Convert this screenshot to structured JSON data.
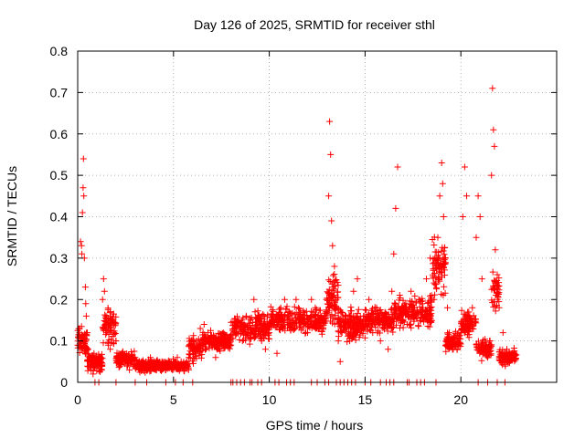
{
  "chart_data": {
    "type": "scatter",
    "title": "Day 126 of 2025, SRMTID for receiver sthl",
    "xlabel": "GPS time / hours",
    "ylabel": "SRMTID / TECUs",
    "xlim": [
      0,
      25
    ],
    "ylim": [
      0,
      0.8
    ],
    "x_ticks": [
      0,
      5,
      10,
      15,
      20
    ],
    "x_tick_labels": [
      "0",
      "5",
      "10",
      "15",
      "20"
    ],
    "y_ticks": [
      0,
      0.1,
      0.2,
      0.3,
      0.4,
      0.5,
      0.6,
      0.7,
      0.8
    ],
    "y_tick_labels": [
      "0",
      "0.1",
      "0.2",
      "0.3",
      "0.4",
      "0.5",
      "0.6",
      "0.7",
      "0.8"
    ],
    "grid": true,
    "legend": "none",
    "marker": "+",
    "marker_color": "#ff0000",
    "series": [
      {
        "name": "SRMTID",
        "points": [
          [
            0.0,
            0.09
          ],
          [
            0.05,
            0.11
          ],
          [
            0.1,
            0.13
          ],
          [
            0.15,
            0.34
          ],
          [
            0.2,
            0.33
          ],
          [
            0.22,
            0.31
          ],
          [
            0.25,
            0.41
          ],
          [
            0.28,
            0.47
          ],
          [
            0.3,
            0.54
          ],
          [
            0.32,
            0.45
          ],
          [
            0.35,
            0.3
          ],
          [
            0.4,
            0.23
          ],
          [
            0.42,
            0.19
          ],
          [
            0.45,
            0.16
          ],
          [
            0.5,
            0.12
          ],
          [
            0.55,
            0.08
          ],
          [
            0.6,
            0.06
          ],
          [
            0.65,
            0.04
          ],
          [
            0.7,
            0.03
          ],
          [
            0.75,
            0.05
          ],
          [
            0.8,
            0.02
          ],
          [
            0.85,
            0.07
          ],
          [
            0.9,
            0.06
          ],
          [
            1.0,
            0.05
          ],
          [
            1.1,
            0.04
          ],
          [
            1.2,
            0.06
          ],
          [
            1.3,
            0.2
          ],
          [
            1.35,
            0.25
          ],
          [
            1.4,
            0.22
          ],
          [
            1.45,
            0.14
          ],
          [
            1.5,
            0.12
          ],
          [
            1.6,
            0.09
          ],
          [
            1.7,
            0.08
          ],
          [
            1.8,
            0.15
          ],
          [
            1.9,
            0.12
          ],
          [
            2.0,
            0.1
          ],
          [
            2.1,
            0.06
          ],
          [
            2.2,
            0.05
          ],
          [
            2.3,
            0.07
          ],
          [
            2.4,
            0.06
          ],
          [
            2.5,
            0.05
          ],
          [
            2.6,
            0.04
          ],
          [
            2.7,
            0.03
          ],
          [
            2.8,
            0.05
          ],
          [
            2.9,
            0.04
          ],
          [
            3.0,
            0.06
          ],
          [
            3.2,
            0.03
          ],
          [
            3.4,
            0.05
          ],
          [
            3.6,
            0.04
          ],
          [
            3.8,
            0.06
          ],
          [
            4.0,
            0.05
          ],
          [
            4.2,
            0.04
          ],
          [
            4.4,
            0.05
          ],
          [
            4.6,
            0.03
          ],
          [
            4.8,
            0.05
          ],
          [
            5.0,
            0.04
          ],
          [
            5.2,
            0.06
          ],
          [
            5.4,
            0.05
          ],
          [
            5.6,
            0.04
          ],
          [
            5.8,
            0.06
          ],
          [
            6.0,
            0.08
          ],
          [
            6.2,
            0.1
          ],
          [
            6.4,
            0.13
          ],
          [
            6.6,
            0.14
          ],
          [
            6.8,
            0.12
          ],
          [
            7.0,
            0.1
          ],
          [
            7.2,
            0.06
          ],
          [
            7.4,
            0.08
          ],
          [
            7.6,
            0.12
          ],
          [
            7.8,
            0.1
          ],
          [
            8.0,
            0.09
          ],
          [
            8.2,
            0.13
          ],
          [
            8.4,
            0.15
          ],
          [
            8.6,
            0.1
          ],
          [
            8.8,
            0.16
          ],
          [
            9.0,
            0.12
          ],
          [
            9.2,
            0.2
          ],
          [
            9.4,
            0.14
          ],
          [
            9.6,
            0.1
          ],
          [
            9.8,
            0.08
          ],
          [
            10.0,
            0.12
          ],
          [
            10.2,
            0.15
          ],
          [
            10.4,
            0.07
          ],
          [
            10.6,
            0.18
          ],
          [
            10.8,
            0.2
          ],
          [
            11.0,
            0.16
          ],
          [
            11.2,
            0.13
          ],
          [
            11.4,
            0.2
          ],
          [
            11.6,
            0.16
          ],
          [
            11.8,
            0.14
          ],
          [
            12.0,
            0.12
          ],
          [
            12.2,
            0.2
          ],
          [
            12.4,
            0.18
          ],
          [
            12.6,
            0.13
          ],
          [
            12.8,
            0.15
          ],
          [
            13.0,
            0.2
          ],
          [
            13.1,
            0.45
          ],
          [
            13.15,
            0.63
          ],
          [
            13.2,
            0.55
          ],
          [
            13.25,
            0.39
          ],
          [
            13.3,
            0.33
          ],
          [
            13.4,
            0.28
          ],
          [
            13.5,
            0.18
          ],
          [
            13.6,
            0.1
          ],
          [
            13.7,
            0.05
          ],
          [
            13.8,
            0.12
          ],
          [
            14.0,
            0.16
          ],
          [
            14.2,
            0.1
          ],
          [
            14.4,
            0.22
          ],
          [
            14.6,
            0.25
          ],
          [
            14.8,
            0.14
          ],
          [
            15.0,
            0.15
          ],
          [
            15.2,
            0.2
          ],
          [
            15.4,
            0.12
          ],
          [
            15.6,
            0.18
          ],
          [
            15.8,
            0.1
          ],
          [
            16.0,
            0.14
          ],
          [
            16.2,
            0.08
          ],
          [
            16.4,
            0.22
          ],
          [
            16.5,
            0.31
          ],
          [
            16.6,
            0.42
          ],
          [
            16.7,
            0.52
          ],
          [
            16.8,
            0.15
          ],
          [
            17.0,
            0.18
          ],
          [
            17.2,
            0.14
          ],
          [
            17.4,
            0.22
          ],
          [
            17.6,
            0.16
          ],
          [
            17.8,
            0.2
          ],
          [
            18.0,
            0.17
          ],
          [
            18.2,
            0.25
          ],
          [
            18.4,
            0.3
          ],
          [
            18.6,
            0.2
          ],
          [
            18.8,
            0.35
          ],
          [
            18.9,
            0.45
          ],
          [
            19.0,
            0.53
          ],
          [
            19.05,
            0.48
          ],
          [
            19.1,
            0.4
          ],
          [
            19.2,
            0.3
          ],
          [
            19.3,
            0.18
          ],
          [
            19.4,
            0.12
          ],
          [
            19.6,
            0.1
          ],
          [
            19.8,
            0.09
          ],
          [
            20.0,
            0.12
          ],
          [
            20.1,
            0.4
          ],
          [
            20.2,
            0.52
          ],
          [
            20.3,
            0.45
          ],
          [
            20.4,
            0.16
          ],
          [
            20.6,
            0.18
          ],
          [
            20.8,
            0.35
          ],
          [
            20.9,
            0.45
          ],
          [
            21.0,
            0.4
          ],
          [
            21.1,
            0.25
          ],
          [
            21.2,
            0.08
          ],
          [
            21.4,
            0.06
          ],
          [
            21.5,
            0.1
          ],
          [
            21.6,
            0.5
          ],
          [
            21.65,
            0.71
          ],
          [
            21.7,
            0.61
          ],
          [
            21.75,
            0.57
          ],
          [
            21.8,
            0.32
          ],
          [
            21.9,
            0.26
          ],
          [
            22.0,
            0.18
          ],
          [
            22.2,
            0.12
          ],
          [
            22.4,
            0.08
          ],
          [
            22.6,
            0.06
          ],
          [
            22.8,
            0.07
          ]
        ]
      }
    ],
    "zero_row_hours": [
      0.9,
      1.1,
      2.0,
      3.0,
      3.6,
      4.6,
      5.1,
      5.5,
      6.0,
      8.0,
      8.1,
      8.3,
      8.5,
      8.7,
      9.0,
      9.1,
      9.4,
      9.6,
      10.3,
      10.5,
      10.9,
      11.1,
      11.3,
      12.2,
      12.5,
      12.9,
      13.1,
      13.5,
      13.7,
      13.9,
      14.1,
      14.3,
      14.5,
      15.0,
      15.3,
      15.8,
      16.1,
      16.3,
      16.5,
      17.2,
      17.3,
      17.7,
      17.9,
      18.1,
      18.7,
      20.9,
      21.4,
      21.9,
      22.3
    ],
    "cloud_regions": [
      {
        "from": 0.0,
        "to": 0.5,
        "center": 0.1,
        "spread": 0.05,
        "count": 60
      },
      {
        "from": 0.5,
        "to": 1.3,
        "center": 0.05,
        "spread": 0.03,
        "count": 90
      },
      {
        "from": 1.3,
        "to": 2.0,
        "center": 0.14,
        "spread": 0.06,
        "count": 70
      },
      {
        "from": 2.0,
        "to": 3.0,
        "center": 0.055,
        "spread": 0.025,
        "count": 110
      },
      {
        "from": 3.0,
        "to": 5.8,
        "center": 0.04,
        "spread": 0.018,
        "count": 320
      },
      {
        "from": 5.8,
        "to": 6.5,
        "center": 0.08,
        "spread": 0.04,
        "count": 70
      },
      {
        "from": 6.5,
        "to": 8.0,
        "center": 0.1,
        "spread": 0.03,
        "count": 160
      },
      {
        "from": 8.0,
        "to": 10.0,
        "center": 0.13,
        "spread": 0.05,
        "count": 190
      },
      {
        "from": 10.0,
        "to": 13.0,
        "center": 0.15,
        "spread": 0.04,
        "count": 260
      },
      {
        "from": 13.0,
        "to": 13.6,
        "center": 0.2,
        "spread": 0.08,
        "count": 70
      },
      {
        "from": 13.6,
        "to": 15.0,
        "center": 0.14,
        "spread": 0.05,
        "count": 150
      },
      {
        "from": 15.0,
        "to": 16.5,
        "center": 0.15,
        "spread": 0.04,
        "count": 150
      },
      {
        "from": 16.5,
        "to": 18.5,
        "center": 0.17,
        "spread": 0.05,
        "count": 190
      },
      {
        "from": 18.5,
        "to": 19.2,
        "center": 0.28,
        "spread": 0.09,
        "count": 80
      },
      {
        "from": 19.2,
        "to": 20.0,
        "center": 0.1,
        "spread": 0.03,
        "count": 90
      },
      {
        "from": 20.0,
        "to": 20.8,
        "center": 0.14,
        "spread": 0.04,
        "count": 80
      },
      {
        "from": 20.8,
        "to": 21.6,
        "center": 0.08,
        "spread": 0.03,
        "count": 80
      },
      {
        "from": 21.6,
        "to": 22.0,
        "center": 0.22,
        "spread": 0.07,
        "count": 40
      },
      {
        "from": 22.0,
        "to": 22.9,
        "center": 0.06,
        "spread": 0.025,
        "count": 90
      }
    ]
  }
}
